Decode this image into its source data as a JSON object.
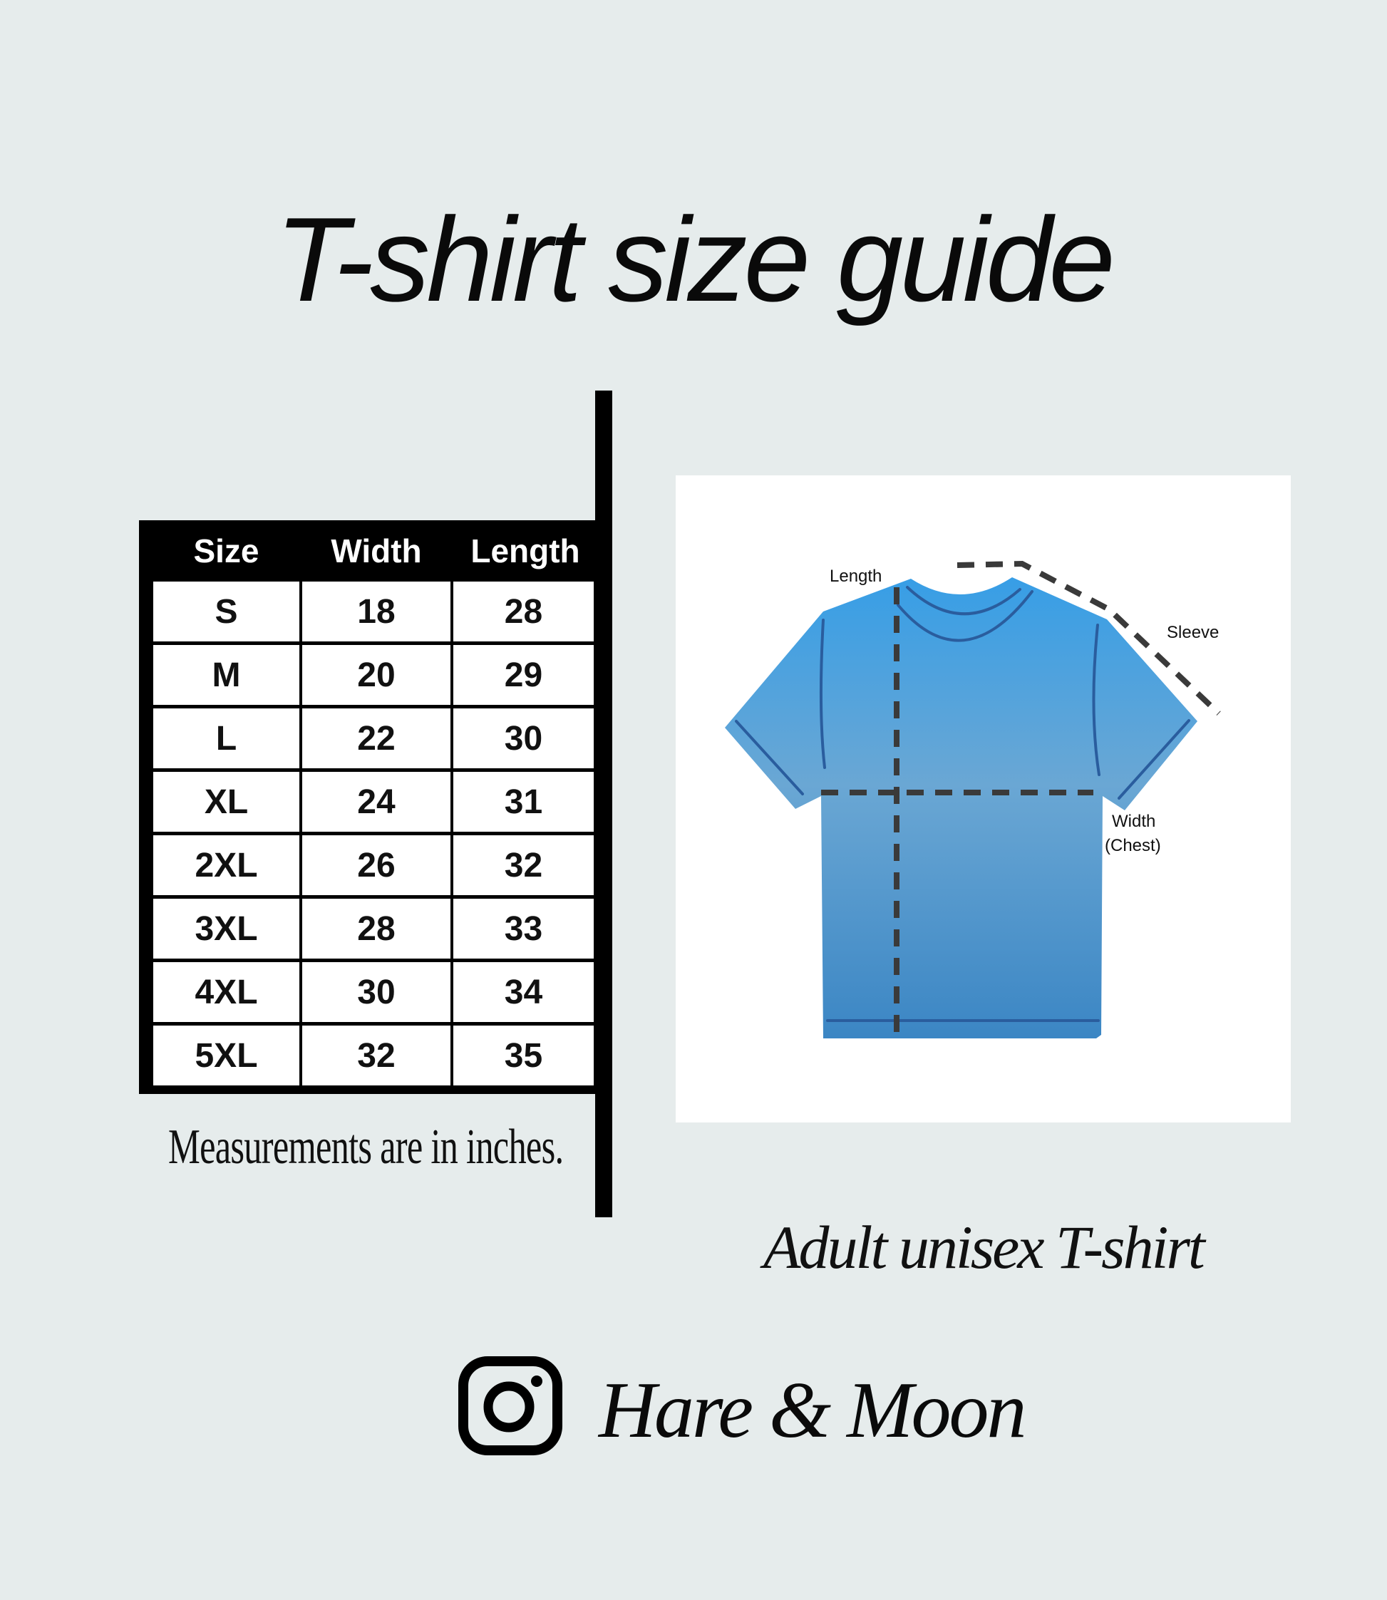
{
  "title": "T-shirt size guide",
  "table": {
    "headers": [
      "Size",
      "Width",
      "Length"
    ],
    "rows": [
      [
        "S",
        "18",
        "28"
      ],
      [
        "M",
        "20",
        "29"
      ],
      [
        "L",
        "22",
        "30"
      ],
      [
        "XL",
        "24",
        "31"
      ],
      [
        "2XL",
        "26",
        "32"
      ],
      [
        "3XL",
        "28",
        "33"
      ],
      [
        "4XL",
        "30",
        "34"
      ],
      [
        "5XL",
        "32",
        "35"
      ]
    ]
  },
  "note": "Measurements are in inches.",
  "diagram": {
    "labels": {
      "length": "Length",
      "sleeve": "Sleeve",
      "width": "Width",
      "chest": "(Chest)"
    },
    "shirt_color": "#3d9be0"
  },
  "caption": "Adult unisex T-shirt",
  "brand": {
    "name": "Hare & Moon",
    "icon": "instagram-icon"
  }
}
